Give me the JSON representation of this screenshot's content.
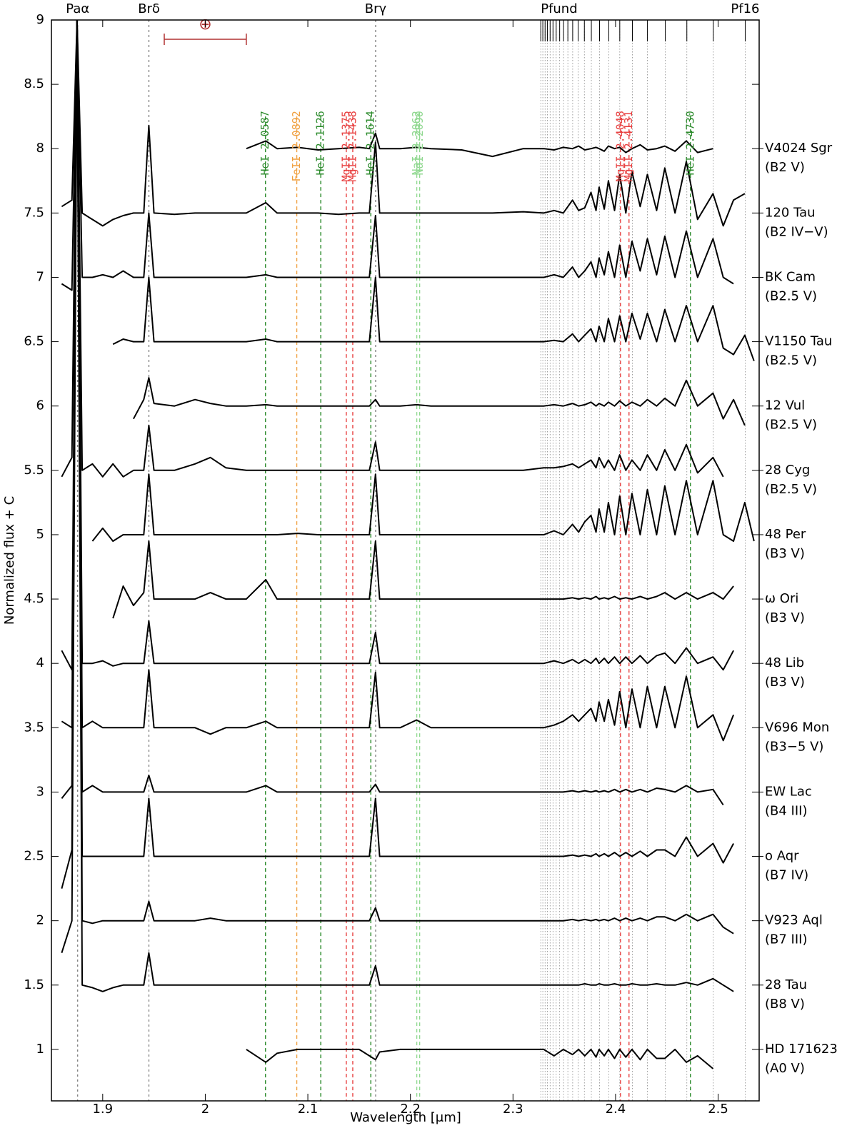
{
  "chart_data": {
    "type": "line",
    "x_label": "Wavelength [μm]",
    "y_label": "Normalized flux + C",
    "xlim": [
      1.85,
      2.54
    ],
    "ylim": [
      0.6,
      9
    ],
    "xticks": [
      1.9,
      2,
      2.1,
      2.2,
      2.3,
      2.4,
      2.5
    ],
    "yticks": [
      1,
      1.5,
      2,
      2.5,
      3,
      3.5,
      4,
      4.5,
      5,
      5.5,
      6,
      6.5,
      7,
      7.5,
      8,
      8.5,
      9
    ],
    "top_labels": [
      {
        "label": "Paα",
        "x": 1.8756
      },
      {
        "label": "Brδ",
        "x": 1.9451
      },
      {
        "label": "Brγ",
        "x": 2.1661
      },
      {
        "label": "Pfund",
        "x": 2.345
      },
      {
        "label": "Pf16",
        "x": 2.5264
      }
    ],
    "hydrogen_lines": [
      1.8756,
      1.9451,
      2.1661
    ],
    "pfund_lines": [
      2.3271,
      2.3291,
      2.3313,
      2.3336,
      2.3362,
      2.339,
      2.3421,
      2.3455,
      2.3493,
      2.3535,
      2.3582,
      2.3635,
      2.3696,
      2.3764,
      2.3844,
      2.3934,
      2.4041,
      2.4164,
      2.4311,
      2.4485,
      2.4695,
      2.4953,
      2.5264
    ],
    "line_ids": [
      {
        "label": "HeI 2.0587",
        "x": 2.0587,
        "color": "#2a8a2a"
      },
      {
        "label": "FeII 2.0892",
        "x": 2.0892,
        "color": "#f0a040"
      },
      {
        "label": "HeI 2.1126",
        "x": 2.1126,
        "color": "#2a8a2a"
      },
      {
        "label": "MgII 2.1375",
        "x": 2.1375,
        "color": "#e84040"
      },
      {
        "label": "MgII 2.1438",
        "x": 2.1438,
        "color": "#e84040"
      },
      {
        "label": "HeI 2.1614",
        "x": 2.1614,
        "color": "#2a8a2a"
      },
      {
        "label": "NaI 2.2062",
        "x": 2.2062,
        "color": "#90d890"
      },
      {
        "label": "NaI 2.2090",
        "x": 2.209,
        "color": "#90d890"
      },
      {
        "label": "MgII 2.4048",
        "x": 2.4048,
        "color": "#e84040"
      },
      {
        "label": "MgII 2.4131",
        "x": 2.4131,
        "color": "#e84040"
      },
      {
        "label": "HeI 2.4730",
        "x": 2.473,
        "color": "#2a8a2a"
      }
    ],
    "resolution_bar": {
      "label": "⊕",
      "x": [
        1.96,
        2.04
      ],
      "y": 8.85,
      "color": "#b03030"
    },
    "x": [
      1.86,
      1.87,
      1.875,
      1.88,
      1.89,
      1.9,
      1.91,
      1.92,
      1.93,
      1.94,
      1.945,
      1.95,
      1.97,
      1.99,
      2.005,
      2.02,
      2.04,
      2.059,
      2.07,
      2.09,
      2.11,
      2.13,
      2.15,
      2.16,
      2.166,
      2.17,
      2.19,
      2.206,
      2.22,
      2.25,
      2.28,
      2.31,
      2.33,
      2.34,
      2.349,
      2.358,
      2.364,
      2.37,
      2.376,
      2.381,
      2.384,
      2.389,
      2.393,
      2.399,
      2.404,
      2.41,
      2.416,
      2.424,
      2.431,
      2.44,
      2.448,
      2.458,
      2.469,
      2.48,
      2.495,
      2.505,
      2.515,
      2.526,
      2.535
    ],
    "series": [
      {
        "name": "V4024 Sgr",
        "sptype": "(B2 V)",
        "offset": 8,
        "color": "#000000",
        "values": [
          null,
          null,
          null,
          null,
          null,
          null,
          null,
          null,
          null,
          null,
          null,
          null,
          null,
          null,
          null,
          null,
          8.0,
          8.06,
          8.0,
          8.01,
          7.99,
          8.0,
          8.01,
          8.0,
          8.12,
          8.0,
          8.0,
          8.01,
          8.0,
          7.99,
          7.94,
          8.0,
          8.0,
          7.99,
          8.01,
          8.0,
          8.02,
          7.99,
          8.0,
          8.01,
          8.0,
          7.98,
          8.02,
          8.0,
          8.01,
          7.97,
          8.0,
          8.03,
          7.99,
          8.0,
          8.02,
          7.98,
          8.06,
          7.97,
          8.0,
          null,
          null,
          null,
          null
        ]
      },
      {
        "name": "120 Tau",
        "sptype": "(B2 IV−V)",
        "offset": 7.5,
        "color": "#000000",
        "values": [
          7.55,
          7.6,
          9.0,
          7.5,
          7.45,
          7.4,
          7.45,
          7.48,
          7.5,
          7.5,
          8.18,
          7.5,
          7.49,
          7.5,
          7.5,
          7.5,
          7.5,
          7.58,
          7.5,
          7.5,
          7.5,
          7.49,
          7.5,
          7.5,
          8.05,
          7.5,
          7.5,
          7.5,
          7.5,
          7.5,
          7.5,
          7.51,
          7.5,
          7.52,
          7.5,
          7.6,
          7.52,
          7.54,
          7.66,
          7.52,
          7.7,
          7.53,
          7.75,
          7.52,
          7.8,
          7.5,
          7.82,
          7.55,
          7.8,
          7.52,
          7.85,
          7.5,
          7.9,
          7.45,
          7.65,
          7.4,
          7.6,
          7.65,
          null
        ]
      },
      {
        "name": "BK Cam",
        "sptype": "(B2.5 V)",
        "offset": 7,
        "color": "#000000",
        "values": [
          6.95,
          6.9,
          9.0,
          7.0,
          7.0,
          7.02,
          7.0,
          7.05,
          7.0,
          7.0,
          7.5,
          7.0,
          7.0,
          7.0,
          7.0,
          7.0,
          7.0,
          7.02,
          7.0,
          7.0,
          7.0,
          7.0,
          7.0,
          7.0,
          7.48,
          7.0,
          7.0,
          7.0,
          7.0,
          7.0,
          7.0,
          7.0,
          7.0,
          7.02,
          7.0,
          7.08,
          7.0,
          7.05,
          7.12,
          7.0,
          7.15,
          7.02,
          7.2,
          7.0,
          7.25,
          7.0,
          7.28,
          7.05,
          7.3,
          7.02,
          7.32,
          7.0,
          7.36,
          7.0,
          7.3,
          7.0,
          6.95,
          null,
          null
        ]
      },
      {
        "name": "V1150 Tau",
        "sptype": "(B2.5 V)",
        "offset": 6.5,
        "color": "#000000",
        "values": [
          null,
          null,
          null,
          null,
          null,
          null,
          6.48,
          6.52,
          6.5,
          6.5,
          7.0,
          6.5,
          6.5,
          6.5,
          6.5,
          6.5,
          6.5,
          6.52,
          6.5,
          6.5,
          6.5,
          6.5,
          6.5,
          6.5,
          7.0,
          6.5,
          6.5,
          6.5,
          6.5,
          6.5,
          6.5,
          6.5,
          6.5,
          6.51,
          6.5,
          6.56,
          6.5,
          6.55,
          6.6,
          6.5,
          6.62,
          6.5,
          6.68,
          6.5,
          6.7,
          6.5,
          6.72,
          6.52,
          6.72,
          6.5,
          6.75,
          6.5,
          6.78,
          6.5,
          6.78,
          6.45,
          6.4,
          6.55,
          6.35
        ]
      },
      {
        "name": "12 Vul",
        "sptype": "(B2.5 V)",
        "offset": 6,
        "color": "#000000",
        "values": [
          null,
          null,
          null,
          null,
          null,
          null,
          null,
          null,
          5.9,
          6.05,
          6.22,
          6.02,
          6.0,
          6.05,
          6.02,
          6.0,
          6.0,
          6.01,
          6.0,
          6.0,
          6.0,
          6.0,
          6.0,
          6.0,
          6.05,
          6.0,
          6.0,
          6.01,
          6.0,
          6.0,
          6.0,
          6.0,
          6.0,
          6.01,
          6.0,
          6.02,
          6.0,
          6.01,
          6.03,
          6.0,
          6.02,
          6.0,
          6.03,
          6.0,
          6.04,
          6.0,
          6.03,
          6.0,
          6.05,
          6.0,
          6.06,
          6.0,
          6.2,
          6.0,
          6.1,
          5.9,
          6.05,
          5.85,
          null
        ]
      },
      {
        "name": "28 Cyg",
        "sptype": "(B2.5 V)",
        "offset": 5.5,
        "color": "#000000",
        "values": [
          5.45,
          5.6,
          9.0,
          5.5,
          5.55,
          5.45,
          5.55,
          5.45,
          5.5,
          5.5,
          5.85,
          5.5,
          5.5,
          5.55,
          5.6,
          5.52,
          5.5,
          5.5,
          5.5,
          5.5,
          5.5,
          5.5,
          5.5,
          5.5,
          5.72,
          5.5,
          5.5,
          5.5,
          5.5,
          5.5,
          5.5,
          5.5,
          5.52,
          5.52,
          5.53,
          5.55,
          5.52,
          5.55,
          5.58,
          5.52,
          5.6,
          5.52,
          5.58,
          5.5,
          5.62,
          5.5,
          5.58,
          5.5,
          5.62,
          5.5,
          5.66,
          5.5,
          5.7,
          5.48,
          5.6,
          5.45,
          null,
          null,
          null
        ]
      },
      {
        "name": "48 Per",
        "sptype": "(B3 V)",
        "offset": 5,
        "color": "#000000",
        "values": [
          null,
          null,
          null,
          null,
          4.95,
          5.05,
          4.95,
          5.0,
          5.0,
          5.0,
          5.47,
          5.0,
          5.0,
          5.0,
          5.0,
          5.0,
          5.0,
          5.0,
          5.0,
          5.01,
          5.0,
          5.0,
          5.0,
          5.0,
          5.47,
          5.0,
          5.0,
          5.0,
          5.0,
          5.0,
          5.0,
          5.0,
          5.0,
          5.03,
          5.0,
          5.08,
          5.02,
          5.1,
          5.15,
          5.02,
          5.2,
          5.02,
          5.25,
          5.0,
          5.3,
          5.0,
          5.32,
          5.0,
          5.35,
          5.0,
          5.38,
          5.0,
          5.42,
          5.0,
          5.42,
          5.0,
          4.95,
          5.25,
          4.95
        ]
      },
      {
        "name": "ω Ori",
        "sptype": "(B3 V)",
        "offset": 4.5,
        "color": "#000000",
        "values": [
          null,
          null,
          null,
          null,
          null,
          null,
          4.35,
          4.6,
          4.45,
          4.55,
          4.95,
          4.5,
          4.5,
          4.5,
          4.55,
          4.5,
          4.5,
          4.65,
          4.5,
          4.5,
          4.5,
          4.5,
          4.5,
          4.5,
          4.95,
          4.5,
          4.5,
          4.5,
          4.5,
          4.5,
          4.5,
          4.5,
          4.5,
          4.5,
          4.5,
          4.51,
          4.5,
          4.51,
          4.5,
          4.52,
          4.5,
          4.51,
          4.5,
          4.52,
          4.5,
          4.51,
          4.5,
          4.52,
          4.5,
          4.52,
          4.55,
          4.5,
          4.55,
          4.5,
          4.55,
          4.5,
          4.6,
          null,
          null
        ]
      },
      {
        "name": "48 Lib",
        "sptype": "(B3 V)",
        "offset": 4,
        "color": "#000000",
        "values": [
          4.1,
          3.95,
          9.0,
          4.0,
          4.0,
          4.02,
          3.98,
          4.0,
          4.0,
          4.0,
          4.33,
          4.0,
          4.0,
          4.0,
          4.0,
          4.0,
          4.0,
          4.0,
          4.0,
          4.0,
          4.0,
          4.0,
          4.0,
          4.0,
          4.24,
          4.0,
          4.0,
          4.0,
          4.0,
          4.0,
          4.0,
          4.0,
          4.0,
          4.02,
          4.0,
          4.03,
          4.0,
          4.03,
          4.0,
          4.04,
          4.0,
          4.04,
          4.0,
          4.05,
          4.0,
          4.05,
          4.0,
          4.06,
          4.0,
          4.06,
          4.08,
          4.0,
          4.12,
          4.0,
          4.05,
          3.95,
          4.1,
          null,
          null
        ]
      },
      {
        "name": "V696 Mon",
        "sptype": "(B3−5 V)",
        "offset": 3.5,
        "color": "#000000",
        "values": [
          3.55,
          3.5,
          9.0,
          3.5,
          3.55,
          3.5,
          3.5,
          3.5,
          3.5,
          3.5,
          3.95,
          3.5,
          3.5,
          3.5,
          3.45,
          3.5,
          3.5,
          3.55,
          3.5,
          3.5,
          3.5,
          3.5,
          3.5,
          3.5,
          3.93,
          3.5,
          3.5,
          3.56,
          3.5,
          3.5,
          3.5,
          3.5,
          3.5,
          3.52,
          3.55,
          3.6,
          3.55,
          3.6,
          3.65,
          3.55,
          3.7,
          3.55,
          3.72,
          3.52,
          3.78,
          3.5,
          3.8,
          3.5,
          3.82,
          3.5,
          3.82,
          3.5,
          3.9,
          3.5,
          3.6,
          3.4,
          3.6,
          null,
          null
        ]
      },
      {
        "name": "EW Lac",
        "sptype": "(B4 III)",
        "offset": 3,
        "color": "#000000",
        "values": [
          2.95,
          3.05,
          9.0,
          3.0,
          3.05,
          3.0,
          3.0,
          3.0,
          3.0,
          3.0,
          3.13,
          3.0,
          3.0,
          3.0,
          3.0,
          3.0,
          3.0,
          3.05,
          3.0,
          3.0,
          3.0,
          3.0,
          3.0,
          3.0,
          3.06,
          3.0,
          3.0,
          3.0,
          3.0,
          3.0,
          3.0,
          3.0,
          3.0,
          3.0,
          3.0,
          3.01,
          3.0,
          3.01,
          3.0,
          3.01,
          3.0,
          3.01,
          3.0,
          3.02,
          3.0,
          3.02,
          3.0,
          3.02,
          3.0,
          3.03,
          3.02,
          3.0,
          3.05,
          3.0,
          3.02,
          2.9,
          null,
          null,
          null
        ]
      },
      {
        "name": "o Aqr",
        "sptype": "(B7 IV)",
        "offset": 2.5,
        "color": "#000000",
        "values": [
          2.25,
          2.55,
          9.0,
          2.5,
          2.5,
          2.5,
          2.5,
          2.5,
          2.5,
          2.5,
          2.95,
          2.5,
          2.5,
          2.5,
          2.5,
          2.5,
          2.5,
          2.5,
          2.5,
          2.5,
          2.5,
          2.5,
          2.5,
          2.5,
          2.95,
          2.5,
          2.5,
          2.5,
          2.5,
          2.5,
          2.5,
          2.5,
          2.5,
          2.5,
          2.5,
          2.51,
          2.5,
          2.51,
          2.5,
          2.52,
          2.5,
          2.52,
          2.5,
          2.53,
          2.5,
          2.53,
          2.5,
          2.54,
          2.5,
          2.55,
          2.55,
          2.5,
          2.65,
          2.5,
          2.6,
          2.45,
          2.6,
          null,
          null
        ]
      },
      {
        "name": "V923 Aql",
        "sptype": "(B7 III)",
        "offset": 2,
        "color": "#000000",
        "values": [
          1.75,
          2.0,
          9.0,
          2.0,
          1.98,
          2.0,
          2.0,
          2.0,
          2.0,
          2.0,
          2.15,
          2.0,
          2.0,
          2.0,
          2.02,
          2.0,
          2.0,
          2.0,
          2.0,
          2.0,
          2.0,
          2.0,
          2.0,
          2.0,
          2.1,
          2.0,
          2.0,
          2.0,
          2.0,
          2.0,
          2.0,
          2.0,
          2.0,
          2.0,
          2.0,
          2.01,
          2.0,
          2.01,
          2.0,
          2.01,
          2.0,
          2.01,
          2.0,
          2.02,
          2.0,
          2.02,
          2.0,
          2.02,
          2.0,
          2.03,
          2.03,
          2.0,
          2.05,
          2.0,
          2.05,
          1.95,
          1.9,
          null,
          null
        ]
      },
      {
        "name": "28 Tau",
        "sptype": "(B8 V)",
        "offset": 1.5,
        "color": "#000000",
        "values": [
          null,
          null,
          9.0,
          1.5,
          1.48,
          1.45,
          1.48,
          1.5,
          1.5,
          1.5,
          1.75,
          1.5,
          1.5,
          1.5,
          1.5,
          1.5,
          1.5,
          1.5,
          1.5,
          1.5,
          1.5,
          1.5,
          1.5,
          1.5,
          1.65,
          1.5,
          1.5,
          1.5,
          1.5,
          1.5,
          1.5,
          1.5,
          1.5,
          1.5,
          1.5,
          1.5,
          1.5,
          1.51,
          1.5,
          1.5,
          1.51,
          1.5,
          1.5,
          1.51,
          1.5,
          1.5,
          1.51,
          1.5,
          1.5,
          1.51,
          1.5,
          1.5,
          1.52,
          1.5,
          1.55,
          1.5,
          1.45,
          null,
          null
        ]
      },
      {
        "name": "HD 171623",
        "sptype": "(A0 V)",
        "offset": 1,
        "color": "#000000",
        "values": [
          null,
          null,
          null,
          null,
          null,
          null,
          null,
          null,
          null,
          null,
          null,
          null,
          null,
          null,
          null,
          null,
          1.0,
          0.9,
          0.97,
          1.0,
          1.0,
          1.0,
          1.0,
          0.95,
          0.92,
          0.98,
          1.0,
          1.0,
          1.0,
          1.0,
          1.0,
          1.0,
          1.0,
          0.95,
          1.0,
          0.96,
          1.0,
          0.95,
          1.0,
          0.94,
          1.0,
          0.95,
          1.0,
          0.93,
          1.0,
          0.94,
          1.0,
          0.92,
          1.0,
          0.93,
          0.93,
          1.0,
          0.9,
          0.95,
          0.85,
          null,
          null,
          null,
          null
        ]
      }
    ]
  }
}
